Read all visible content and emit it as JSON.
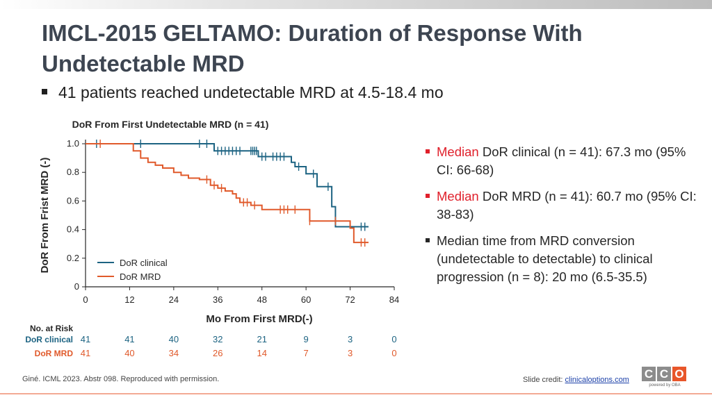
{
  "slide": {
    "title": "IMCL-2015 GELTAMO: Duration of Response With Undetectable MRD",
    "lead": "41 patients reached undetectable MRD at 4.5-18.4 mo",
    "bullets": [
      {
        "highlight": "Median",
        "text": " DoR clinical (n = 41): 67.3 mo (95% CI: 66-68)"
      },
      {
        "highlight": "Median",
        "text": " DoR MRD (n  = 41): 60.7 mo (95% CI: 38-83)"
      },
      {
        "highlight": "",
        "text": "Median time from MRD conversion (undetectable to detectable) to clinical progression (n = 8): 20 mo (6.5-35.5)"
      }
    ],
    "footer": "Giné. ICML 2023. Abstr 098. Reproduced with permission.",
    "credit_label": "Slide credit: ",
    "credit_link": "clinicaloptions.com",
    "logo_letters": [
      "C",
      "C",
      "O"
    ],
    "logo_tagline": "powered by OBA"
  },
  "colors": {
    "clinical": "#1c6382",
    "mrd": "#e0592a",
    "accent_red": "#e0202b"
  },
  "chart_data": {
    "type": "line",
    "title": "DoR From First Undetectable MRD (n = 41)",
    "xlabel": "Mo From First MRD(-)",
    "ylabel": "DoR From Frist MRD (-)",
    "xlim": [
      0,
      84
    ],
    "ylim": [
      0,
      1.0
    ],
    "xticks": [
      0,
      12,
      24,
      36,
      48,
      60,
      72,
      84
    ],
    "yticks": [
      0,
      0.2,
      0.4,
      0.6,
      0.8,
      1.0
    ],
    "ytick_labels": [
      "0",
      "0.2",
      "0.4",
      "0.6",
      "0.8",
      "1.0"
    ],
    "legend_position": "bottom-left",
    "series": [
      {
        "name": "DoR clinical",
        "color_key": "clinical",
        "steps": [
          [
            0,
            1.0
          ],
          [
            35,
            0.95
          ],
          [
            47,
            0.91
          ],
          [
            56,
            0.87
          ],
          [
            57,
            0.84
          ],
          [
            60,
            0.79
          ],
          [
            63,
            0.7
          ],
          [
            67,
            0.7
          ],
          [
            67,
            0.56
          ],
          [
            68,
            0.42
          ],
          [
            77,
            0.42
          ]
        ],
        "censors": [
          [
            3,
            1.0
          ],
          [
            15,
            1.0
          ],
          [
            31,
            1.0
          ],
          [
            33,
            1.0
          ],
          [
            36,
            0.95
          ],
          [
            37,
            0.95
          ],
          [
            38,
            0.95
          ],
          [
            39,
            0.95
          ],
          [
            40,
            0.95
          ],
          [
            41,
            0.95
          ],
          [
            42,
            0.95
          ],
          [
            45,
            0.95
          ],
          [
            45.5,
            0.95
          ],
          [
            46,
            0.95
          ],
          [
            46.5,
            0.95
          ],
          [
            48,
            0.91
          ],
          [
            49,
            0.91
          ],
          [
            51,
            0.91
          ],
          [
            52,
            0.91
          ],
          [
            53,
            0.91
          ],
          [
            54,
            0.91
          ],
          [
            58,
            0.84
          ],
          [
            62,
            0.79
          ],
          [
            66,
            0.7
          ],
          [
            75,
            0.42
          ],
          [
            76,
            0.42
          ]
        ]
      },
      {
        "name": "DoR MRD",
        "color_key": "mrd",
        "steps": [
          [
            0,
            1.0
          ],
          [
            13,
            0.95
          ],
          [
            15,
            0.9
          ],
          [
            17,
            0.87
          ],
          [
            19,
            0.85
          ],
          [
            21,
            0.83
          ],
          [
            24,
            0.8
          ],
          [
            26,
            0.78
          ],
          [
            28,
            0.76
          ],
          [
            31,
            0.75
          ],
          [
            34,
            0.71
          ],
          [
            36,
            0.69
          ],
          [
            38,
            0.67
          ],
          [
            40,
            0.65
          ],
          [
            41,
            0.62
          ],
          [
            42,
            0.59
          ],
          [
            45,
            0.57
          ],
          [
            48,
            0.54
          ],
          [
            61,
            0.46
          ],
          [
            72,
            0.41
          ],
          [
            73,
            0.31
          ],
          [
            77,
            0.31
          ]
        ],
        "censors": [
          [
            4,
            1.0
          ],
          [
            33,
            0.75
          ],
          [
            35,
            0.71
          ],
          [
            37,
            0.69
          ],
          [
            43,
            0.59
          ],
          [
            44,
            0.59
          ],
          [
            46,
            0.57
          ],
          [
            53,
            0.54
          ],
          [
            54,
            0.54
          ],
          [
            55,
            0.54
          ],
          [
            57,
            0.54
          ],
          [
            61,
            0.46
          ],
          [
            68,
            0.46
          ],
          [
            75,
            0.31
          ],
          [
            76,
            0.31
          ]
        ]
      }
    ],
    "risk_table": {
      "heading": "No. at Risk",
      "times": [
        0,
        12,
        24,
        36,
        48,
        60,
        72,
        84
      ],
      "rows": [
        {
          "name": "DoR clinical",
          "color_key": "clinical",
          "values": [
            41,
            41,
            40,
            32,
            21,
            9,
            3,
            0
          ]
        },
        {
          "name": "DoR MRD",
          "color_key": "mrd",
          "values": [
            41,
            40,
            34,
            26,
            14,
            7,
            3,
            0
          ]
        }
      ]
    }
  }
}
